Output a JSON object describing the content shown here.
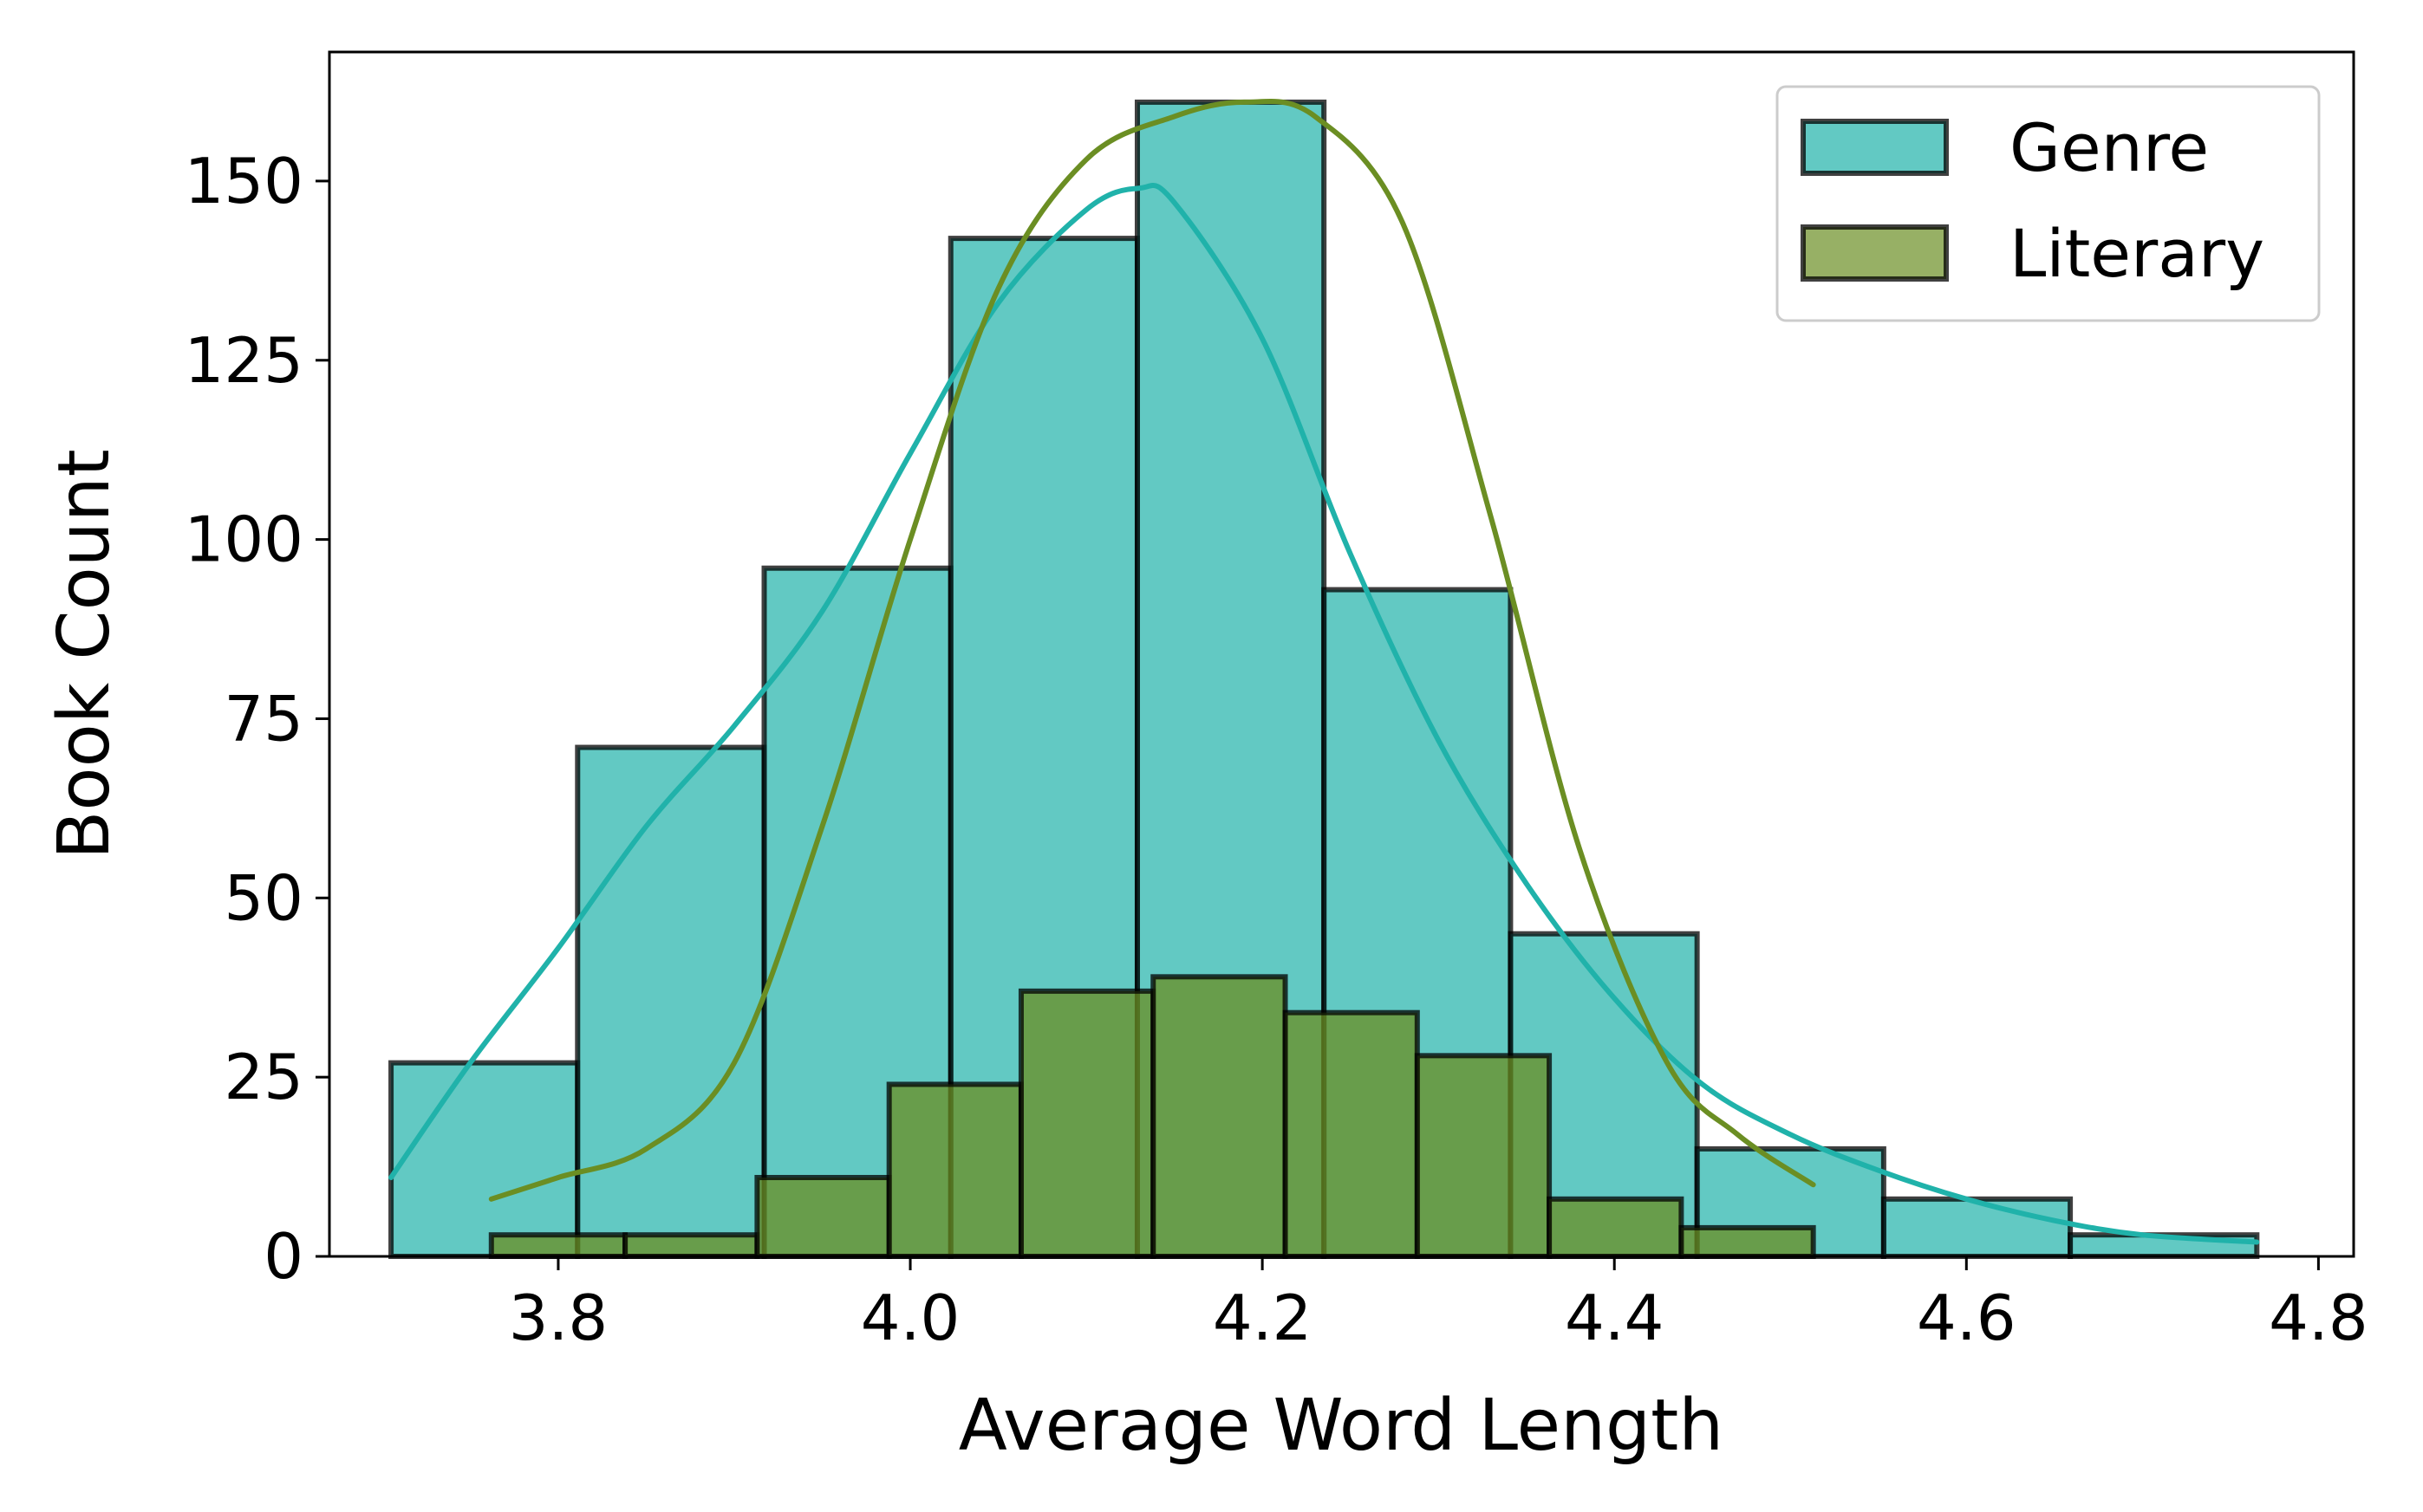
{
  "chart_data": {
    "type": "bar",
    "xlabel": "Average Word Length",
    "ylabel": "Book Count",
    "xlim": [
      3.67,
      4.82
    ],
    "ylim": [
      0,
      168
    ],
    "xticks": [
      3.8,
      4.0,
      4.2,
      4.4,
      4.6,
      4.8
    ],
    "xtick_labels": [
      "3.8",
      "4.0",
      "4.2",
      "4.4",
      "4.6",
      "4.8"
    ],
    "yticks": [
      0,
      25,
      50,
      75,
      100,
      125,
      150
    ],
    "ytick_labels": [
      "0",
      "25",
      "50",
      "75",
      "100",
      "125",
      "150"
    ],
    "grid": false,
    "legend": {
      "position": "top-right",
      "entries": [
        {
          "name": "Genre",
          "color": "#20b2aa"
        },
        {
          "name": "Literary",
          "color": "#6b8e23"
        }
      ]
    },
    "series": [
      {
        "name": "Genre",
        "color": "#20b2aa",
        "bins": [
          {
            "x0": 3.705,
            "x1": 3.811,
            "count": 27
          },
          {
            "x0": 3.811,
            "x1": 3.917,
            "count": 71
          },
          {
            "x0": 3.917,
            "x1": 4.023,
            "count": 96
          },
          {
            "x0": 4.023,
            "x1": 4.129,
            "count": 142
          },
          {
            "x0": 4.129,
            "x1": 4.235,
            "count": 161
          },
          {
            "x0": 4.235,
            "x1": 4.341,
            "count": 93
          },
          {
            "x0": 4.341,
            "x1": 4.447,
            "count": 45
          },
          {
            "x0": 4.447,
            "x1": 4.553,
            "count": 15
          },
          {
            "x0": 4.553,
            "x1": 4.659,
            "count": 8
          },
          {
            "x0": 4.659,
            "x1": 4.765,
            "count": 3
          }
        ],
        "kde": {
          "x": [
            3.705,
            3.75,
            3.8,
            3.85,
            3.9,
            3.95,
            4.0,
            4.05,
            4.1,
            4.13,
            4.15,
            4.2,
            4.25,
            4.3,
            4.35,
            4.4,
            4.45,
            4.5,
            4.55,
            4.6,
            4.65,
            4.7,
            4.765
          ],
          "y": [
            11,
            27,
            43,
            60,
            74,
            90,
            112,
            133,
            146,
            149,
            147,
            128,
            98,
            72,
            52,
            36,
            24,
            17,
            12,
            8,
            5,
            3,
            2
          ]
        }
      },
      {
        "name": "Literary",
        "color": "#6b8e23",
        "bins": [
          {
            "x0": 3.762,
            "x1": 3.838,
            "count": 3
          },
          {
            "x0": 3.838,
            "x1": 3.913,
            "count": 3
          },
          {
            "x0": 3.913,
            "x1": 3.988,
            "count": 11
          },
          {
            "x0": 3.988,
            "x1": 4.063,
            "count": 24
          },
          {
            "x0": 4.063,
            "x1": 4.138,
            "count": 37
          },
          {
            "x0": 4.138,
            "x1": 4.213,
            "count": 39
          },
          {
            "x0": 4.213,
            "x1": 4.288,
            "count": 34
          },
          {
            "x0": 4.288,
            "x1": 4.363,
            "count": 28
          },
          {
            "x0": 4.363,
            "x1": 4.438,
            "count": 8
          },
          {
            "x0": 4.438,
            "x1": 4.513,
            "count": 4
          }
        ],
        "kde": {
          "x": [
            3.762,
            3.8,
            3.85,
            3.9,
            3.95,
            4.0,
            4.05,
            4.1,
            4.15,
            4.19,
            4.23,
            4.28,
            4.33,
            4.38,
            4.43,
            4.47,
            4.513
          ],
          "y": [
            8,
            11,
            15,
            27,
            60,
            100,
            135,
            153,
            159,
            161,
            159,
            144,
            103,
            57,
            27,
            17,
            10
          ]
        }
      }
    ]
  }
}
